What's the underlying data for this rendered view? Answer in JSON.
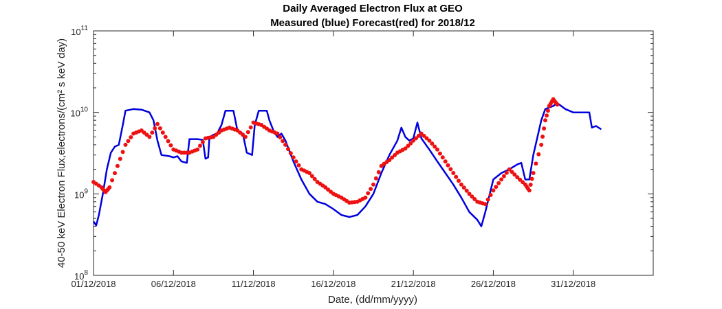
{
  "chart_data": {
    "type": "line",
    "title": "Daily Averaged Electron Flux at GEO",
    "subtitle": "Measured (blue) Forecast(red) for 2018/12",
    "xlabel": "Date, (dd/mm/yyyy)",
    "ylabel": "40-50 keV Electron Flux,electrons/(cm² s keV day)",
    "yscale": "log",
    "ylim": [
      100000000.0,
      100000000000.0
    ],
    "xlim": [
      "01/12/2018",
      "05/01/2019"
    ],
    "x_tick_labels": [
      "01/12/2018",
      "06/12/2018",
      "11/12/2018",
      "16/12/2018",
      "21/12/2018",
      "26/12/2018",
      "31/12/2018"
    ],
    "y_tick_labels": [
      {
        "base": "10",
        "exp": "8"
      },
      {
        "base": "10",
        "exp": "9"
      },
      {
        "base": "10",
        "exp": "10"
      },
      {
        "base": "10",
        "exp": "11"
      }
    ],
    "grid": false,
    "colors": {
      "measured": "#0000dd",
      "forecast": "#ee1111"
    },
    "series": [
      {
        "style": "line",
        "color": "#0000dd",
        "points": [
          [
            "01/12/2018 00:00",
            460000000.0
          ],
          [
            "01/12/2018 04:00",
            410000000.0
          ],
          [
            "01/12/2018 08:00",
            550000000.0
          ],
          [
            "01/12/2018 14:00",
            1000000000.0
          ],
          [
            "01/12/2018 20:00",
            2000000000.0
          ],
          [
            "02/12/2018 02:00",
            3200000000.0
          ],
          [
            "02/12/2018 08:00",
            3800000000.0
          ],
          [
            "02/12/2018 14:00",
            4000000000.0
          ],
          [
            "02/12/2018 20:00",
            7000000000.0
          ],
          [
            "03/12/2018 00:00",
            10500000000.0
          ],
          [
            "03/12/2018 12:00",
            11000000000.0
          ],
          [
            "04/12/2018 00:00",
            10800000000.0
          ],
          [
            "04/12/2018 12:00",
            10000000000.0
          ],
          [
            "04/12/2018 18:00",
            8000000000.0
          ],
          [
            "05/12/2018 00:00",
            4500000000.0
          ],
          [
            "05/12/2018 06:00",
            3000000000.0
          ],
          [
            "05/12/2018 18:00",
            2900000000.0
          ],
          [
            "06/12/2018 00:00",
            2800000000.0
          ],
          [
            "06/12/2018 06:00",
            2900000000.0
          ],
          [
            "06/12/2018 12:00",
            2500000000.0
          ],
          [
            "06/12/2018 20:00",
            2400000000.0
          ],
          [
            "07/12/2018 00:00",
            4700000000.0
          ],
          [
            "07/12/2018 12:00",
            4700000000.0
          ],
          [
            "07/12/2018 20:00",
            4600000000.0
          ],
          [
            "08/12/2018 00:00",
            2700000000.0
          ],
          [
            "08/12/2018 04:00",
            2800000000.0
          ],
          [
            "08/12/2018 06:00",
            5000000000.0
          ],
          [
            "08/12/2018 18:00",
            5600000000.0
          ],
          [
            "09/12/2018 00:00",
            7000000000.0
          ],
          [
            "09/12/2018 06:00",
            10500000000.0
          ],
          [
            "09/12/2018 18:00",
            10500000000.0
          ],
          [
            "10/12/2018 00:00",
            6000000000.0
          ],
          [
            "10/12/2018 08:00",
            5500000000.0
          ],
          [
            "10/12/2018 14:00",
            3200000000.0
          ],
          [
            "10/12/2018 22:00",
            3000000000.0
          ],
          [
            "11/12/2018 02:00",
            7000000000.0
          ],
          [
            "11/12/2018 08:00",
            10500000000.0
          ],
          [
            "11/12/2018 20:00",
            10500000000.0
          ],
          [
            "12/12/2018 00:00",
            8000000000.0
          ],
          [
            "12/12/2018 06:00",
            6000000000.0
          ],
          [
            "12/12/2018 12:00",
            5000000000.0
          ],
          [
            "12/12/2018 18:00",
            5500000000.0
          ],
          [
            "13/12/2018 00:00",
            4500000000.0
          ],
          [
            "13/12/2018 12:00",
            2500000000.0
          ],
          [
            "14/12/2018 00:00",
            1500000000.0
          ],
          [
            "14/12/2018 12:00",
            1000000000.0
          ],
          [
            "15/12/2018 00:00",
            800000000.0
          ],
          [
            "15/12/2018 12:00",
            750000000.0
          ],
          [
            "16/12/2018 00:00",
            650000000.0
          ],
          [
            "16/12/2018 12:00",
            550000000.0
          ],
          [
            "17/12/2018 00:00",
            520000000.0
          ],
          [
            "17/12/2018 12:00",
            550000000.0
          ],
          [
            "18/12/2018 00:00",
            700000000.0
          ],
          [
            "18/12/2018 12:00",
            1000000000.0
          ],
          [
            "19/12/2018 00:00",
            1800000000.0
          ],
          [
            "19/12/2018 12:00",
            3000000000.0
          ],
          [
            "20/12/2018 00:00",
            4500000000.0
          ],
          [
            "20/12/2018 06:00",
            6500000000.0
          ],
          [
            "20/12/2018 12:00",
            5000000000.0
          ],
          [
            "20/12/2018 18:00",
            4500000000.0
          ],
          [
            "21/12/2018 00:00",
            4800000000.0
          ],
          [
            "21/12/2018 06:00",
            7500000000.0
          ],
          [
            "21/12/2018 12:00",
            4800000000.0
          ],
          [
            "22/12/2018 00:00",
            3500000000.0
          ],
          [
            "22/12/2018 12:00",
            2500000000.0
          ],
          [
            "23/12/2018 00:00",
            1800000000.0
          ],
          [
            "23/12/2018 12:00",
            1300000000.0
          ],
          [
            "24/12/2018 00:00",
            900000000.0
          ],
          [
            "24/12/2018 12:00",
            600000000.0
          ],
          [
            "25/12/2018 00:00",
            480000000.0
          ],
          [
            "25/12/2018 06:00",
            400000000.0
          ],
          [
            "25/12/2018 12:00",
            600000000.0
          ],
          [
            "26/12/2018 00:00",
            1500000000.0
          ],
          [
            "26/12/2018 12:00",
            1800000000.0
          ],
          [
            "27/12/2018 00:00",
            2000000000.0
          ],
          [
            "27/12/2018 12:00",
            2300000000.0
          ],
          [
            "27/12/2018 18:00",
            2400000000.0
          ],
          [
            "28/12/2018 00:00",
            1500000000.0
          ],
          [
            "28/12/2018 06:00",
            1500000000.0
          ],
          [
            "28/12/2018 12:00",
            3000000000.0
          ],
          [
            "29/12/2018 00:00",
            8000000000.0
          ],
          [
            "29/12/2018 06:00",
            11000000000.0
          ],
          [
            "29/12/2018 18:00",
            12000000000.0
          ],
          [
            "30/12/2018 00:00",
            13000000000.0
          ],
          [
            "30/12/2018 12:00",
            11000000000.0
          ],
          [
            "31/12/2018 00:00",
            10000000000.0
          ],
          [
            "31/12/2018 12:00",
            10000000000.0
          ],
          [
            "01/01/2019 00:00",
            10000000000.0
          ],
          [
            "01/01/2019 04:00",
            6500000000.0
          ],
          [
            "01/01/2019 10:00",
            6800000000.0
          ],
          [
            "01/01/2019 18:00",
            6200000000.0
          ]
        ]
      },
      {
        "style": "markers",
        "color": "#ee1111",
        "points": [
          [
            "01/12/2018 00:00",
            1400000000.0
          ],
          [
            "01/12/2018 12:00",
            1200000000.0
          ],
          [
            "01/12/2018 18:00",
            1050000000.0
          ],
          [
            "02/12/2018 00:00",
            1200000000.0
          ],
          [
            "02/12/2018 12:00",
            2200000000.0
          ],
          [
            "03/12/2018 00:00",
            4000000000.0
          ],
          [
            "03/12/2018 12:00",
            5500000000.0
          ],
          [
            "04/12/2018 00:00",
            6000000000.0
          ],
          [
            "04/12/2018 12:00",
            5000000000.0
          ],
          [
            "05/12/2018 00:00",
            7200000000.0
          ],
          [
            "05/12/2018 12:00",
            5000000000.0
          ],
          [
            "06/12/2018 00:00",
            3500000000.0
          ],
          [
            "06/12/2018 12:00",
            3200000000.0
          ],
          [
            "07/12/2018 00:00",
            3200000000.0
          ],
          [
            "07/12/2018 12:00",
            3500000000.0
          ],
          [
            "08/12/2018 00:00",
            4800000000.0
          ],
          [
            "08/12/2018 12:00",
            5000000000.0
          ],
          [
            "09/12/2018 00:00",
            6000000000.0
          ],
          [
            "09/12/2018 12:00",
            6500000000.0
          ],
          [
            "10/12/2018 00:00",
            6000000000.0
          ],
          [
            "10/12/2018 12:00",
            5000000000.0
          ],
          [
            "11/12/2018 00:00",
            7500000000.0
          ],
          [
            "11/12/2018 12:00",
            7000000000.0
          ],
          [
            "12/12/2018 00:00",
            6000000000.0
          ],
          [
            "12/12/2018 12:00",
            5500000000.0
          ],
          [
            "13/12/2018 00:00",
            4000000000.0
          ],
          [
            "13/12/2018 12:00",
            2800000000.0
          ],
          [
            "14/12/2018 00:00",
            2000000000.0
          ],
          [
            "14/12/2018 12:00",
            1800000000.0
          ],
          [
            "15/12/2018 00:00",
            1400000000.0
          ],
          [
            "15/12/2018 12:00",
            1200000000.0
          ],
          [
            "16/12/2018 00:00",
            1000000000.0
          ],
          [
            "16/12/2018 12:00",
            900000000.0
          ],
          [
            "17/12/2018 00:00",
            780000000.0
          ],
          [
            "17/12/2018 12:00",
            800000000.0
          ],
          [
            "18/12/2018 00:00",
            900000000.0
          ],
          [
            "18/12/2018 12:00",
            1300000000.0
          ],
          [
            "19/12/2018 00:00",
            2200000000.0
          ],
          [
            "19/12/2018 12:00",
            2600000000.0
          ],
          [
            "20/12/2018 00:00",
            3200000000.0
          ],
          [
            "20/12/2018 12:00",
            3600000000.0
          ],
          [
            "21/12/2018 00:00",
            4500000000.0
          ],
          [
            "21/12/2018 12:00",
            5500000000.0
          ],
          [
            "22/12/2018 00:00",
            4500000000.0
          ],
          [
            "22/12/2018 12:00",
            3500000000.0
          ],
          [
            "23/12/2018 00:00",
            2500000000.0
          ],
          [
            "23/12/2018 12:00",
            1800000000.0
          ],
          [
            "24/12/2018 00:00",
            1300000000.0
          ],
          [
            "24/12/2018 12:00",
            1000000000.0
          ],
          [
            "25/12/2018 00:00",
            800000000.0
          ],
          [
            "25/12/2018 12:00",
            750000000.0
          ],
          [
            "26/12/2018 00:00",
            1100000000.0
          ],
          [
            "26/12/2018 12:00",
            1500000000.0
          ],
          [
            "27/12/2018 00:00",
            2000000000.0
          ],
          [
            "27/12/2018 12:00",
            1600000000.0
          ],
          [
            "28/12/2018 00:00",
            1300000000.0
          ],
          [
            "28/12/2018 06:00",
            1100000000.0
          ],
          [
            "28/12/2018 12:00",
            1800000000.0
          ],
          [
            "29/12/2018 00:00",
            4000000000.0
          ],
          [
            "29/12/2018 06:00",
            8000000000.0
          ],
          [
            "29/12/2018 12:00",
            12000000000.0
          ],
          [
            "29/12/2018 18:00",
            14500000000.0
          ],
          [
            "30/12/2018 00:00",
            12500000000.0
          ]
        ]
      }
    ]
  }
}
